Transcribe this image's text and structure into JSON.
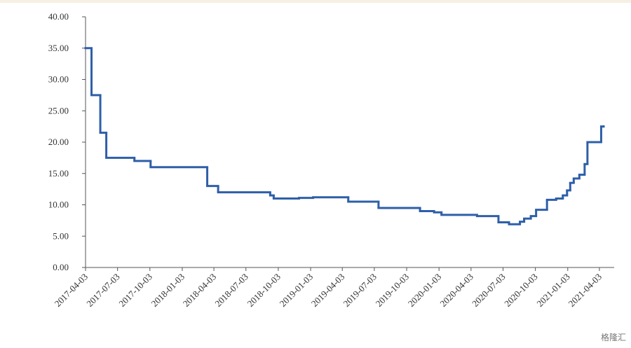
{
  "chart_data": {
    "type": "step-line",
    "x": [
      "2017-04-03",
      "2017-04-20",
      "2017-05-15",
      "2017-06-01",
      "2017-08-20",
      "2017-10-05",
      "2018-03-15",
      "2018-04-15",
      "2018-09-10",
      "2018-09-20",
      "2018-12-01",
      "2019-01-10",
      "2019-04-20",
      "2019-07-15",
      "2019-11-10",
      "2019-12-20",
      "2020-01-10",
      "2020-04-20",
      "2020-06-20",
      "2020-07-20",
      "2020-08-20",
      "2020-09-01",
      "2020-09-20",
      "2020-10-05",
      "2020-11-05",
      "2020-12-01",
      "2020-12-20",
      "2021-01-01",
      "2021-01-10",
      "2021-01-20",
      "2021-02-05",
      "2021-02-20",
      "2021-02-28",
      "2021-04-08",
      "2021-04-15"
    ],
    "series": [
      {
        "color": "#2e5fa8",
        "values": [
          35,
          27.5,
          21.5,
          17.5,
          17,
          16,
          13,
          12,
          11.5,
          11,
          11.1,
          11.2,
          10.5,
          9.5,
          9,
          8.8,
          8.4,
          8.2,
          7.2,
          6.9,
          7.3,
          7.8,
          8.2,
          9.2,
          10.8,
          11,
          11.5,
          12.3,
          13.5,
          14.2,
          14.8,
          16.5,
          20,
          22.5,
          22.5
        ]
      }
    ],
    "xlim": [
      "2017-04-03",
      "2021-05-15"
    ],
    "xticks": [
      "2017-04-03",
      "2017-07-03",
      "2017-10-03",
      "2018-01-03",
      "2018-04-03",
      "2018-07-03",
      "2018-10-03",
      "2019-01-03",
      "2019-04-03",
      "2019-07-03",
      "2019-10-03",
      "2020-01-03",
      "2020-04-03",
      "2020-07-03",
      "2020-10-03",
      "2021-01-03",
      "2021-04-03"
    ],
    "ylim": [
      0,
      40
    ],
    "yticks": [
      {
        "value": 0,
        "label": "0.00"
      },
      {
        "value": 5,
        "label": "5.00"
      },
      {
        "value": 10,
        "label": "10.00"
      },
      {
        "value": 15,
        "label": "15.00"
      },
      {
        "value": 20,
        "label": "20.00"
      },
      {
        "value": 25,
        "label": "25.00"
      },
      {
        "value": 30,
        "label": "30.00"
      },
      {
        "value": 35,
        "label": "35.00"
      },
      {
        "value": 40,
        "label": "40.00"
      }
    ],
    "watermark": "格隆汇"
  }
}
